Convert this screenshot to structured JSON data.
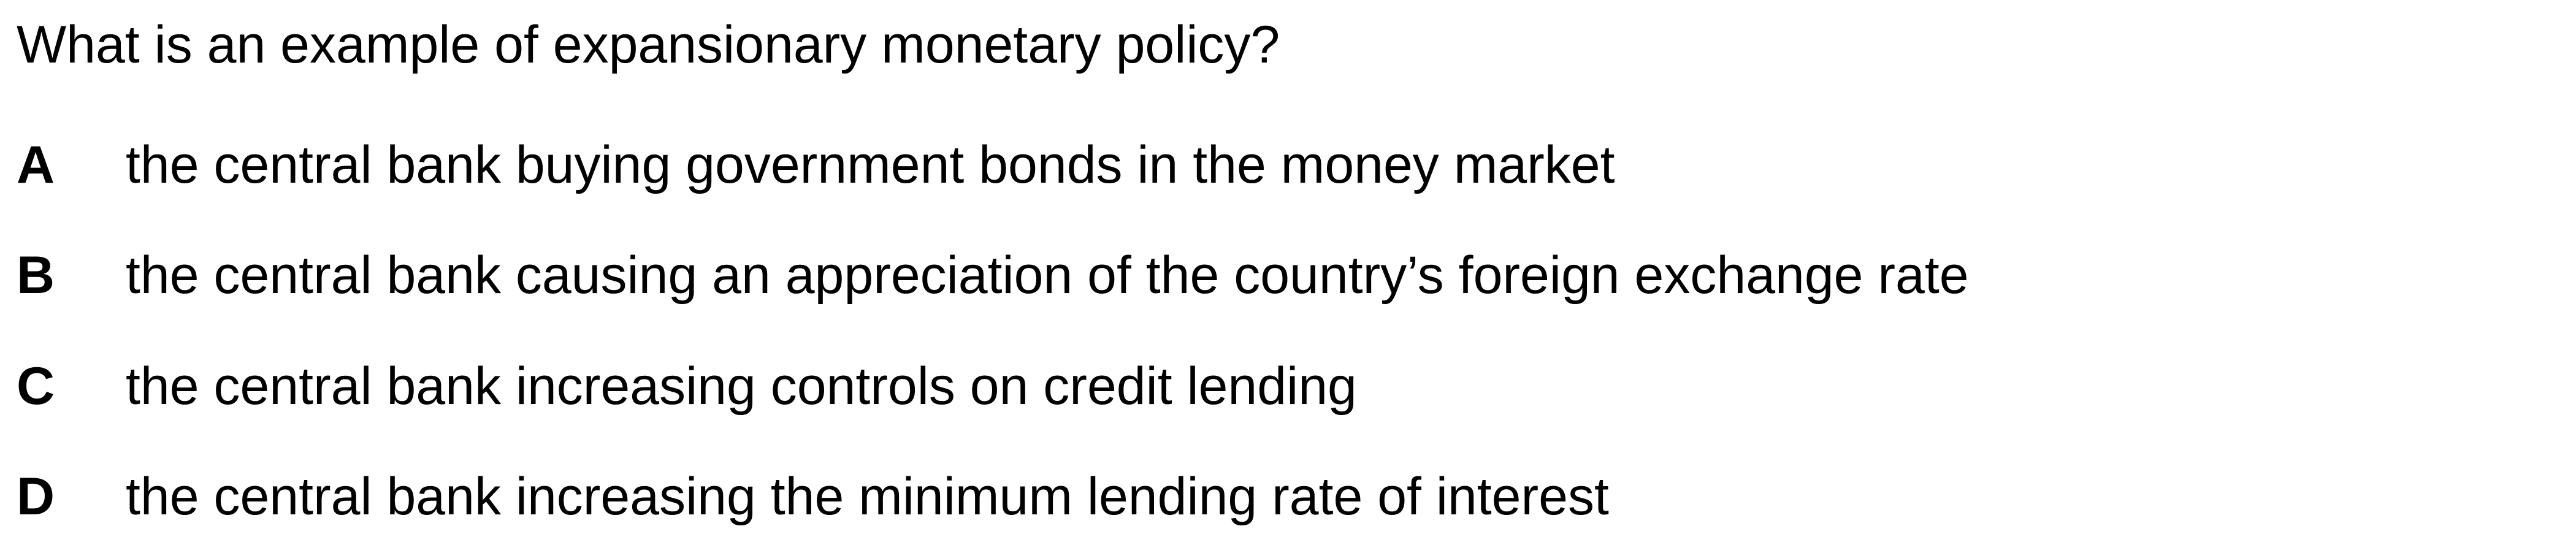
{
  "question": "What is an example of expansionary monetary policy?",
  "options": [
    {
      "letter": "A",
      "text": "the central bank buying government bonds in the money market"
    },
    {
      "letter": "B",
      "text": "the central bank causing an appreciation of the country’s foreign exchange rate"
    },
    {
      "letter": "C",
      "text": "the central bank increasing controls on credit lending"
    },
    {
      "letter": "D",
      "text": "the central bank increasing the minimum lending rate of interest"
    }
  ]
}
